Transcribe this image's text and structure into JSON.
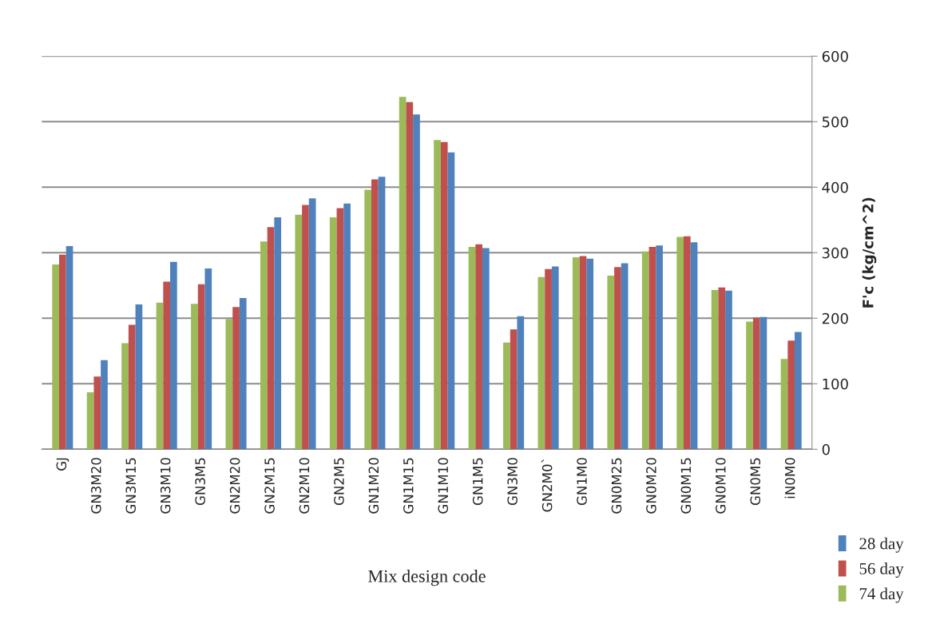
{
  "chart_data": {
    "type": "bar",
    "xlabel": "Mix design code",
    "ylabel": "F'c (kg/cm^2)",
    "categories": [
      "GJ",
      "GN3M20",
      "GN3M15",
      "GN3M10",
      "GN3M5",
      "GN2M20",
      "GN2M15",
      "GN2M10",
      "GN2M5",
      "GN1M20",
      "GN1M15",
      "GN1M10",
      "GN1M5",
      "GN3M0",
      "GN2M0`",
      "GN1M0",
      "GN0M25",
      "GN0M20",
      "GN0M15",
      "GN0M10",
      "GN0M5",
      "iN0M0"
    ],
    "series": [
      {
        "name": "74 day",
        "color": "#9bbb59",
        "values": [
          282,
          87,
          162,
          224,
          222,
          199,
          317,
          358,
          354,
          396,
          538,
          472,
          309,
          163,
          263,
          293,
          265,
          302,
          324,
          243,
          195,
          138
        ]
      },
      {
        "name": "56 day",
        "color": "#c0504d",
        "values": [
          297,
          111,
          190,
          256,
          252,
          217,
          339,
          373,
          368,
          412,
          530,
          469,
          313,
          183,
          275,
          295,
          278,
          309,
          325,
          247,
          201,
          166
        ]
      },
      {
        "name": "28 day",
        "color": "#4f81bd",
        "values": [
          310,
          136,
          221,
          286,
          276,
          231,
          354,
          383,
          375,
          416,
          511,
          453,
          307,
          203,
          279,
          291,
          284,
          311,
          316,
          242,
          202,
          179
        ]
      }
    ],
    "ylim": [
      0,
      600
    ],
    "yticks": [
      0,
      100,
      200,
      300,
      400,
      500,
      600
    ],
    "grid": "y",
    "legend": "bottom right"
  }
}
